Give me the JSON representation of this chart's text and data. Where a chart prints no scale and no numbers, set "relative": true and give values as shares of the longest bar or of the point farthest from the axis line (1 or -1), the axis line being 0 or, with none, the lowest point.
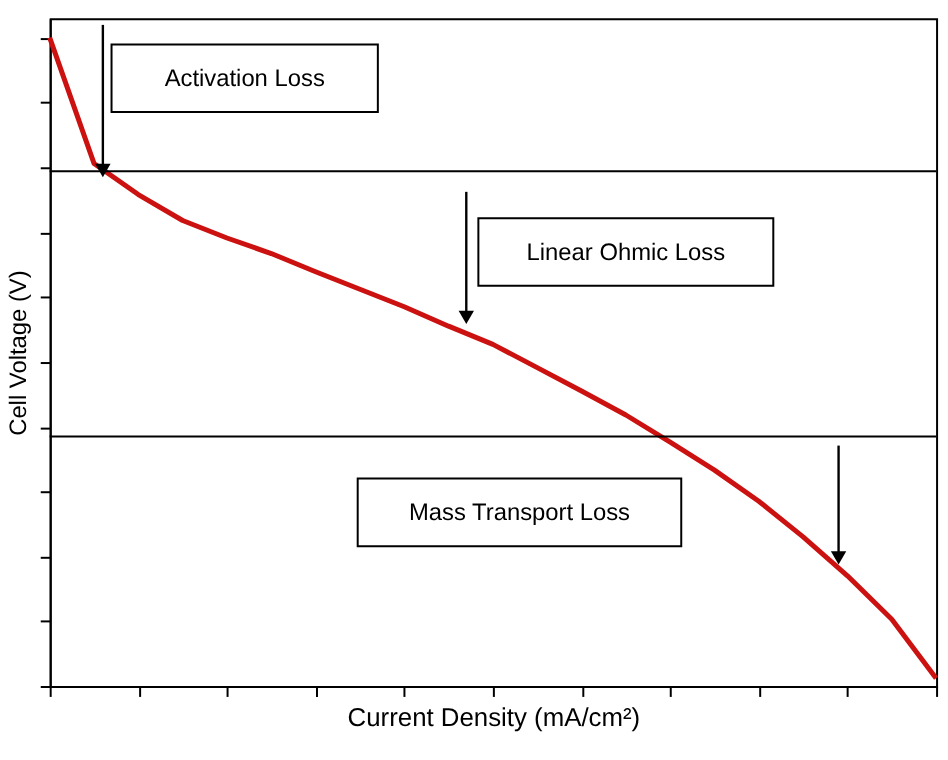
{
  "chart_data": {
    "type": "line",
    "relative": true,
    "xlabel": "Current Density (mA/cm²)",
    "ylabel": "Cell Voltage (V)",
    "categories": [
      null,
      null,
      null,
      null,
      null,
      null,
      null,
      null,
      null,
      null,
      null,
      null,
      null,
      null,
      null,
      null,
      null,
      null,
      null,
      null,
      null
    ],
    "series": [
      {
        "color": "#cc1111",
        "values": [
          1.0,
          0.806,
          0.758,
          0.718,
          0.691,
          0.667,
          0.639,
          0.612,
          0.585,
          0.555,
          0.527,
          0.491,
          0.455,
          0.418,
          0.376,
          0.333,
          0.285,
          0.23,
          0.17,
          0.103,
          0.012
        ]
      }
    ],
    "ref_lines": [
      {
        "axis": "y",
        "value": 0.794,
        "color": "#000000"
      },
      {
        "axis": "y",
        "value": 0.385,
        "color": "#000000"
      }
    ],
    "annotations": [
      "Activation Loss",
      "Linear Ohmic Loss",
      "Mass Transport Loss"
    ],
    "grid": false,
    "marker": "none",
    "line_style": "solid",
    "tick_labels": false
  }
}
